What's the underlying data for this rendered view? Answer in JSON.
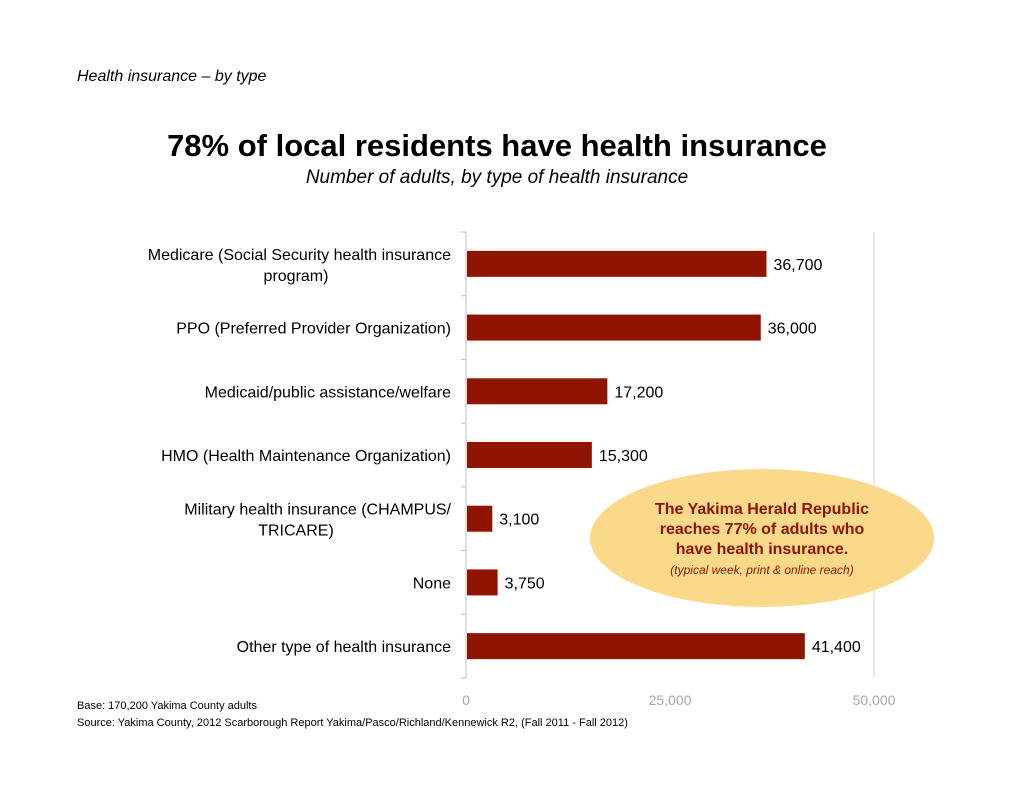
{
  "header": {
    "section_label": "Health insurance – by type",
    "title": "78% of local residents have health insurance",
    "subtitle": "Number of adults, by type of health insurance"
  },
  "chart_data": {
    "type": "bar",
    "orientation": "horizontal",
    "categories": [
      "Medicare (Social Security health insurance program)",
      "PPO (Preferred Provider Organization)",
      "Medicaid/public assistance/welfare",
      "HMO (Health Maintenance Organization)",
      "Military health insurance (CHAMPUS/ TRICARE)",
      "None",
      "Other type of health insurance"
    ],
    "category_lines": [
      [
        "Medicare (Social Security health insurance",
        "program)"
      ],
      [
        "PPO (Preferred Provider Organization)"
      ],
      [
        "Medicaid/public assistance/welfare"
      ],
      [
        "HMO (Health Maintenance Organization)"
      ],
      [
        "Military health insurance (CHAMPUS/",
        "TRICARE)"
      ],
      [
        "None"
      ],
      [
        "Other type of health insurance"
      ]
    ],
    "values": [
      36700,
      36000,
      17200,
      15300,
      3100,
      3750,
      41400
    ],
    "value_labels": [
      "36,700",
      "36,000",
      "17,200",
      "15,300",
      "3,100",
      "3,750",
      "41,400"
    ],
    "xlim": [
      0,
      50000
    ],
    "xticks": [
      0,
      25000,
      50000
    ],
    "xtick_labels": [
      "0",
      "25,000",
      "50,000"
    ],
    "bar_color": "#8f1402",
    "grid": false
  },
  "callout": {
    "text": "The Yakima Herald Republic reaches 77% of adults who have health insurance.",
    "note": "(typical week, print & online reach)",
    "fill_color": "#fad98b",
    "text_color": "#8b1500"
  },
  "footer": {
    "base": "Base: 170,200 Yakima County adults",
    "source": "Source: Yakima County, 2012 Scarborough Report Yakima/Pasco/Richland/Kennewick R2, (Fall 2011 - Fall 2012)"
  }
}
